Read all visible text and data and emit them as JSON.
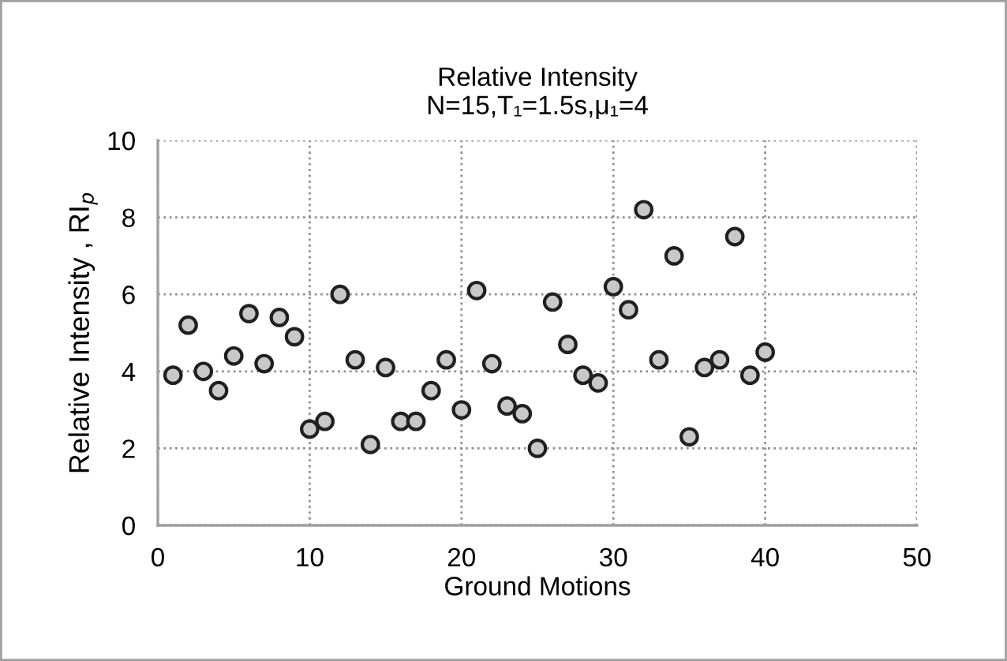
{
  "chart_data": {
    "type": "scatter",
    "title": "Relative Intensity\nN=15,T₁=1.5s,μ₁=4",
    "xlabel": "Ground Motions",
    "ylabel": "Relative Intensity , RI$_{p}$",
    "x": [
      1,
      2,
      3,
      4,
      5,
      6,
      7,
      8,
      9,
      10,
      11,
      12,
      13,
      14,
      15,
      16,
      17,
      18,
      19,
      20,
      21,
      22,
      23,
      24,
      25,
      26,
      27,
      28,
      29,
      30,
      31,
      32,
      33,
      34,
      35,
      36,
      37,
      38,
      39,
      40
    ],
    "series": [
      {
        "color": "#c8c8c8",
        "values": [
          3.9,
          5.2,
          4.0,
          3.5,
          4.4,
          5.5,
          4.2,
          5.4,
          4.9,
          2.5,
          2.7,
          6.0,
          4.3,
          2.1,
          4.1,
          2.7,
          2.7,
          3.5,
          4.3,
          3.0,
          6.1,
          4.2,
          3.1,
          2.9,
          2.0,
          5.8,
          4.7,
          3.9,
          3.7,
          6.2,
          5.6,
          8.2,
          4.3,
          7.0,
          2.3,
          4.1,
          4.3,
          7.5,
          3.9,
          4.5
        ]
      }
    ],
    "xlim": [
      0,
      50
    ],
    "xticks": [
      0,
      10,
      20,
      30,
      40,
      50
    ],
    "ylim": [
      0,
      10
    ],
    "yticks": [
      0,
      2,
      4,
      6,
      8,
      10
    ],
    "grid": true,
    "marker": "circle",
    "legend": false
  }
}
